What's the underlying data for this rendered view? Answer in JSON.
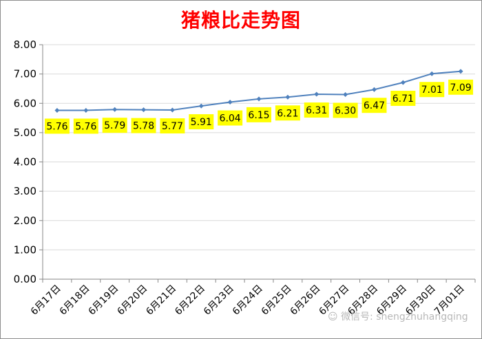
{
  "chart_data": {
    "type": "line",
    "title": "猪粮比走势图",
    "categories": [
      "6月17日",
      "6月18日",
      "6月19日",
      "6月20日",
      "6月21日",
      "6月22日",
      "6月23日",
      "6月24日",
      "6月25日",
      "6月26日",
      "6月27日",
      "6月28日",
      "6月29日",
      "6月30日",
      "7月01日"
    ],
    "values": [
      5.76,
      5.76,
      5.79,
      5.78,
      5.77,
      5.91,
      6.04,
      6.15,
      6.21,
      6.31,
      6.3,
      6.47,
      6.71,
      7.01,
      7.09
    ],
    "data_labels": [
      "5.76",
      "5.76",
      "5.79",
      "5.78",
      "5.77",
      "5.91",
      "6.04",
      "6.15",
      "6.21",
      "6.31",
      "6.30",
      "6.47",
      "6.71",
      "7.01",
      "7.09"
    ],
    "y_ticks": [
      "0.00",
      "1.00",
      "2.00",
      "3.00",
      "4.00",
      "5.00",
      "6.00",
      "7.00",
      "8.00"
    ],
    "ylim": [
      0,
      8
    ],
    "xlabel": "",
    "ylabel": "",
    "grid": true,
    "legend": "none",
    "colors": {
      "line": "#4f81bd",
      "label_bg": "#ffff00",
      "title": "#ff0000",
      "grid": "#d9d9d9"
    }
  },
  "watermark": {
    "icon": "wechat-icon",
    "text": "微信号: shengzhuhangqing"
  }
}
